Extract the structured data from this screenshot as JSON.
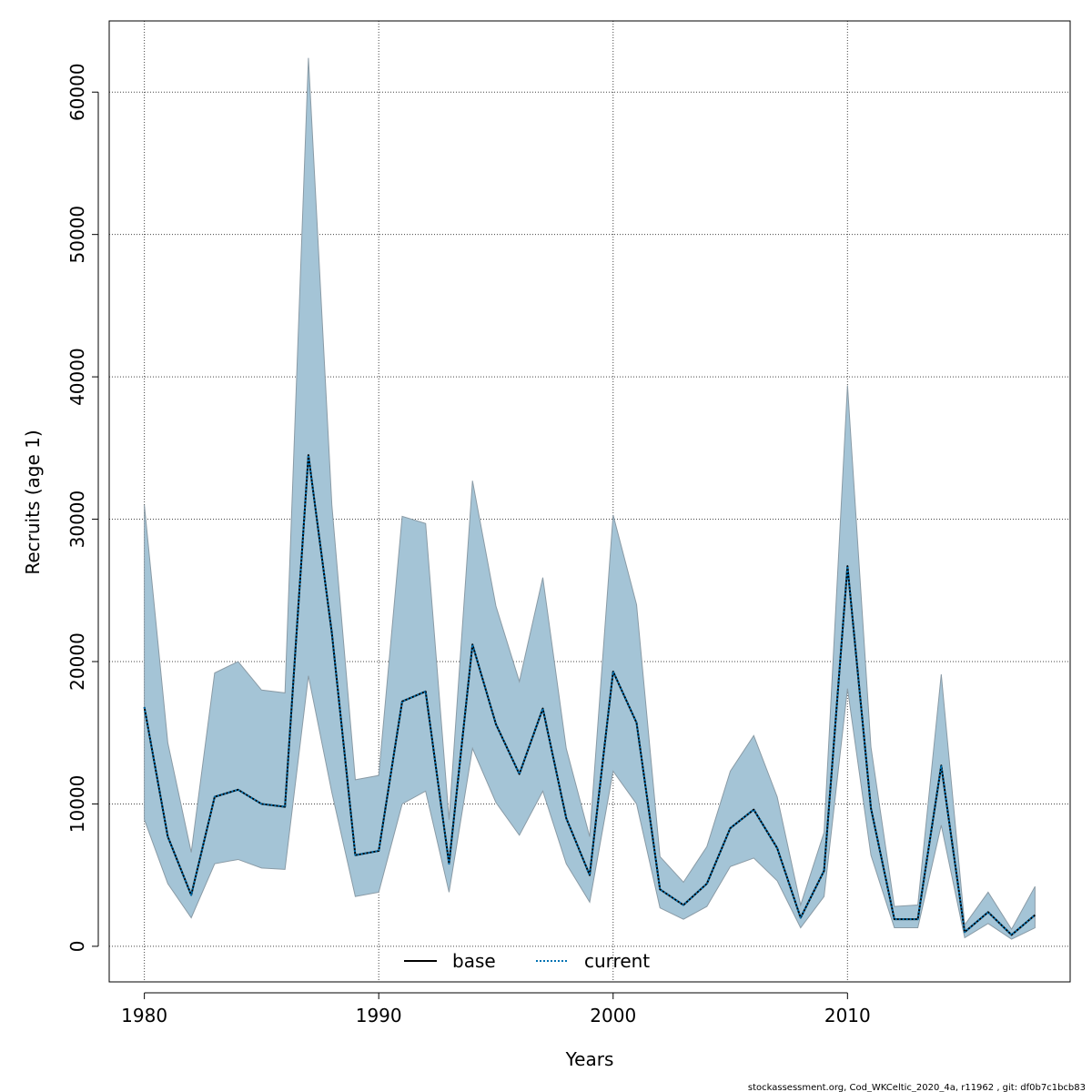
{
  "chart_data": {
    "type": "line",
    "title": "",
    "xlabel": "Years",
    "ylabel": "Recruits (age 1)",
    "xlim": [
      1978.5,
      2019.5
    ],
    "ylim": [
      -2500,
      65000
    ],
    "x_ticks": [
      1980,
      1990,
      2000,
      2010
    ],
    "y_ticks": [
      0,
      10000,
      20000,
      30000,
      40000,
      50000,
      60000
    ],
    "grid": true,
    "legend_placement": "bottom-center",
    "x": [
      1980,
      1981,
      1982,
      1983,
      1984,
      1985,
      1986,
      1987,
      1988,
      1989,
      1990,
      1991,
      1992,
      1993,
      1994,
      1995,
      1996,
      1997,
      1998,
      1999,
      2000,
      2001,
      2002,
      2003,
      2004,
      2005,
      2006,
      2007,
      2008,
      2009,
      2010,
      2011,
      2012,
      2013,
      2014,
      2015,
      2016,
      2017,
      2018
    ],
    "series": [
      {
        "name": "base",
        "line_style": "solid",
        "color": "#000000",
        "values": [
          16800,
          7700,
          3600,
          10500,
          11000,
          10000,
          9800,
          34500,
          22000,
          6400,
          6700,
          17200,
          17900,
          5800,
          21200,
          15600,
          12100,
          16700,
          9000,
          5000,
          19300,
          15700,
          4000,
          2900,
          4400,
          8300,
          9600,
          6900,
          2000,
          5300,
          26700,
          9700,
          1900,
          1900,
          12700,
          1000,
          2400,
          800,
          2200
        ]
      },
      {
        "name": "current",
        "line_style": "dotted",
        "color": "#0072B2",
        "values": [
          16800,
          7700,
          3600,
          10500,
          11000,
          10000,
          9800,
          34500,
          22000,
          6400,
          6700,
          17200,
          17900,
          5800,
          21200,
          15600,
          12100,
          16700,
          9000,
          5000,
          19300,
          15700,
          4000,
          2900,
          4400,
          8300,
          9600,
          6900,
          2000,
          5300,
          26700,
          9700,
          1900,
          1900,
          12700,
          1000,
          2400,
          800,
          2200
        ]
      }
    ],
    "confidence_band": {
      "color": "#A4C4D6",
      "upper": [
        31000,
        14300,
        6600,
        19200,
        20000,
        18000,
        17800,
        62400,
        31000,
        11700,
        12000,
        30200,
        29700,
        8900,
        32700,
        23900,
        18600,
        25900,
        13900,
        7700,
        30300,
        24000,
        6300,
        4500,
        7000,
        12300,
        14800,
        10500,
        2900,
        8000,
        39400,
        14000,
        2800,
        2900,
        19100,
        1500,
        3800,
        1200,
        4200
      ],
      "lower": [
        8900,
        4400,
        2000,
        5800,
        6100,
        5500,
        5400,
        19000,
        10800,
        3500,
        3800,
        10000,
        10900,
        3800,
        13900,
        10100,
        7800,
        10900,
        5800,
        3100,
        12300,
        10000,
        2700,
        1900,
        2800,
        5600,
        6200,
        4600,
        1300,
        3500,
        18100,
        6400,
        1300,
        1300,
        8500,
        600,
        1600,
        500,
        1300
      ]
    }
  },
  "legend": {
    "items": [
      {
        "label": "base"
      },
      {
        "label": "current"
      }
    ]
  },
  "footer": {
    "text": "stockassessment.org, Cod_WKCeltic_2020_4a, r11962 , git: df0b7c1bcb83"
  },
  "colors": {
    "band_fill": "#A4C4D6",
    "band_stroke": "#8A9BA6",
    "grid": "#444444",
    "axis": "#000000"
  }
}
